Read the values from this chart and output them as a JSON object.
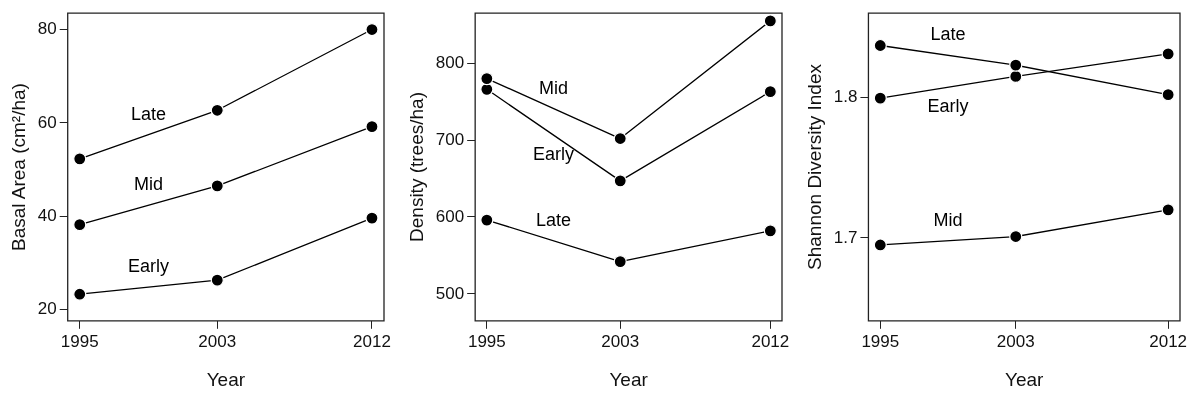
{
  "chart_data": [
    {
      "type": "line",
      "xlabel": "Year",
      "ylabel": "Basal Area (cm²/ha)",
      "x": [
        1995,
        2003,
        2012
      ],
      "xlim": [
        1994.3,
        2012.7
      ],
      "xticks": [
        1995,
        2003,
        2012
      ],
      "ylim": [
        17.6,
        83.5
      ],
      "yticks": [
        20,
        40,
        60,
        80
      ],
      "marker": "circle",
      "line_style": "solid",
      "grid": false,
      "legend": false,
      "series": [
        {
          "name": "Late",
          "color": "#000000",
          "values": [
            52.3,
            62.7,
            80
          ]
        },
        {
          "name": "Mid",
          "color": "#000000",
          "values": [
            38.2,
            46.5,
            59.2
          ]
        },
        {
          "name": "Early",
          "color": "#000000",
          "values": [
            23.3,
            26.3,
            39.6
          ]
        }
      ]
    },
    {
      "type": "line",
      "xlabel": "Year",
      "ylabel": "Density (trees/ha)",
      "x": [
        1995,
        2003,
        2012
      ],
      "xlim": [
        1994.3,
        2012.7
      ],
      "xticks": [
        1995,
        2003,
        2012
      ],
      "ylim": [
        465,
        865
      ],
      "yticks": [
        500,
        600,
        700,
        800
      ],
      "marker": "circle",
      "line_style": "solid",
      "grid": false,
      "legend": false,
      "series": [
        {
          "name": "Mid",
          "color": "#000000",
          "values": [
            780,
            702,
            855
          ]
        },
        {
          "name": "Early",
          "color": "#000000",
          "values": [
            766,
            647,
            763
          ]
        },
        {
          "name": "Late",
          "color": "#000000",
          "values": [
            596,
            542,
            582
          ]
        }
      ]
    },
    {
      "type": "line",
      "xlabel": "Year",
      "ylabel": "Shannon Diversity Index",
      "x": [
        1995,
        2003,
        2012
      ],
      "xlim": [
        1994.3,
        2012.7
      ],
      "xticks": [
        1995,
        2003,
        2012
      ],
      "ylim": [
        1.641,
        1.86
      ],
      "yticks": [
        1.7,
        1.8
      ],
      "marker": "circle",
      "line_style": "solid",
      "grid": false,
      "legend": false,
      "series": [
        {
          "name": "Late",
          "color": "#000000",
          "values": [
            1.837,
            1.823,
            1.802
          ]
        },
        {
          "name": "Early",
          "color": "#000000",
          "values": [
            1.7995,
            1.815,
            1.831
          ]
        },
        {
          "name": "Mid",
          "color": "#000000",
          "values": [
            1.695,
            1.701,
            1.72
          ]
        }
      ]
    }
  ]
}
